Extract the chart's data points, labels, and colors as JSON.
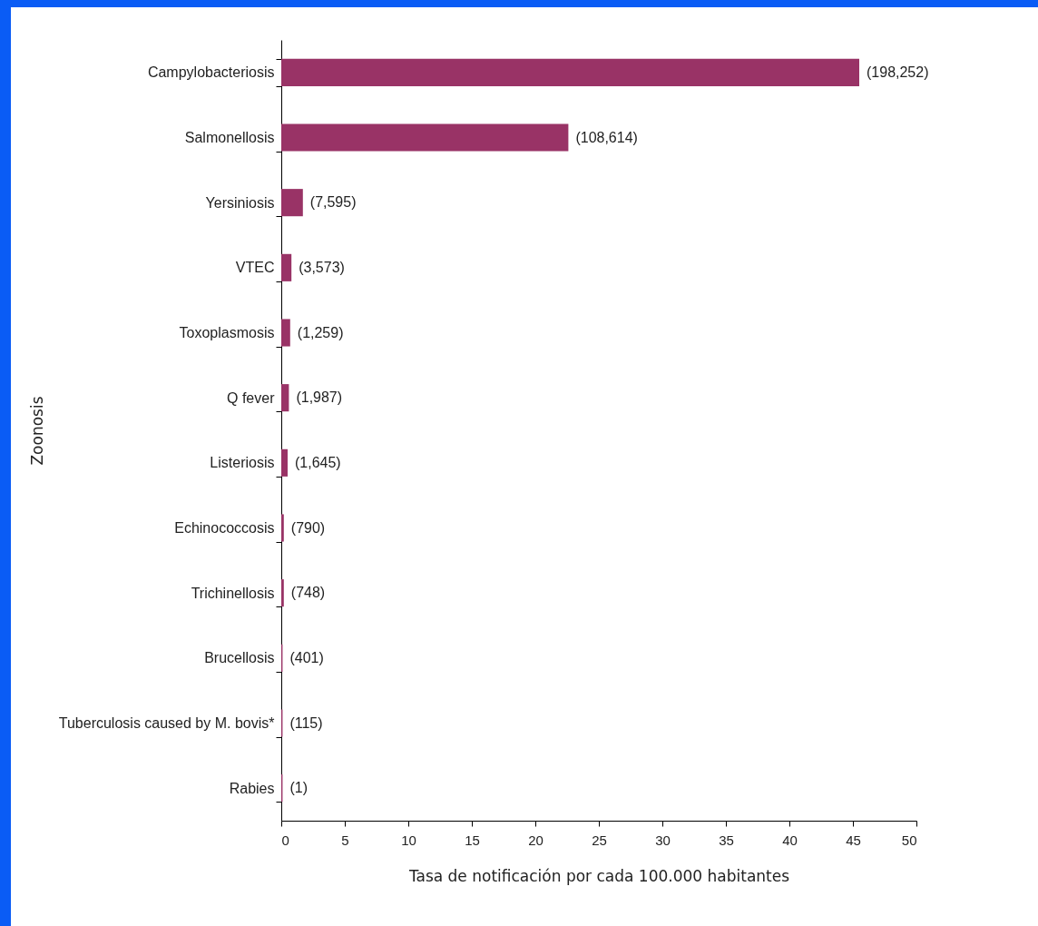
{
  "chart_data": {
    "type": "bar",
    "orientation": "horizontal",
    "xlabel": "Tasa de notificación por cada 100.000 habitantes",
    "ylabel": "Zoonosis",
    "categories": [
      "Campylobacteriosis",
      "Salmonellosis",
      "Yersiniosis",
      "VTEC",
      "Toxoplasmosis",
      "Q fever",
      "Listeriosis",
      "Echinococcosis",
      "Trichinellosis",
      "Brucellosis",
      "Tuberculosis caused by M. bovis*",
      "Rabies"
    ],
    "values": [
      45.5,
      22.6,
      1.7,
      0.8,
      0.7,
      0.6,
      0.5,
      0.2,
      0.2,
      0.1,
      0.1,
      0.1
    ],
    "annotations": [
      {
        "text": "(198,252)",
        "x": 45.5,
        "y": "Campylobacteriosis"
      },
      {
        "text": "(108,614)",
        "x": 22.6,
        "y": "Salmonellosis"
      },
      {
        "text": "(7,595)",
        "x": 1.7,
        "y": "Yersiniosis"
      },
      {
        "text": "(3,573)",
        "x": 0.8,
        "y": "VTEC"
      },
      {
        "text": "(1,259)",
        "x": 0.7,
        "y": "Toxoplasmosis"
      },
      {
        "text": "(1,987)",
        "x": 0.6,
        "y": "Q fever"
      },
      {
        "text": "(1,645)",
        "x": 0.5,
        "y": "Listeriosis"
      },
      {
        "text": "(790)",
        "x": 0.2,
        "y": "Echinococcosis"
      },
      {
        "text": "(748)",
        "x": 0.2,
        "y": "Trichinellosis"
      },
      {
        "text": "(401)",
        "x": 0.1,
        "y": "Brucellosis"
      },
      {
        "text": "(115)",
        "x": 0.1,
        "y": "Tuberculosis caused by M. bovis*"
      },
      {
        "text": "(1)",
        "x": 0.1,
        "y": "Rabies"
      }
    ],
    "color": "#993366",
    "xlim": [
      0,
      50
    ],
    "xticks": [
      0,
      5,
      10,
      15,
      20,
      25,
      30,
      35,
      40,
      45,
      50
    ],
    "grid": false
  }
}
